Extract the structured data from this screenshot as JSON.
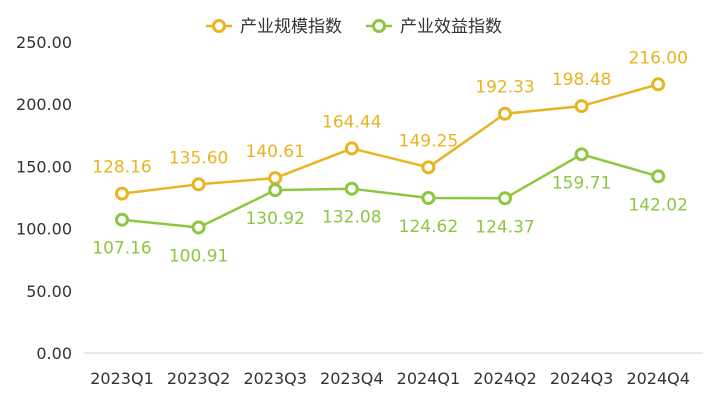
{
  "chart_data": {
    "type": "line",
    "categories": [
      "2023Q1",
      "2023Q2",
      "2023Q3",
      "2023Q4",
      "2024Q1",
      "2024Q2",
      "2024Q3",
      "2024Q4"
    ],
    "ylim": [
      0,
      250
    ],
    "yticks": [
      "0.00",
      "50.00",
      "100.00",
      "150.00",
      "200.00",
      "250.00"
    ],
    "grid": false,
    "legend_position": "top",
    "series": [
      {
        "name": "产业规模指数",
        "color": "#E8B420",
        "values": [
          128.16,
          135.6,
          140.61,
          164.44,
          149.25,
          192.33,
          198.48,
          216.0
        ],
        "labels": [
          "128.16",
          "135.60",
          "140.61",
          "164.44",
          "149.25",
          "192.33",
          "198.48",
          "216.00"
        ],
        "label_position": "above"
      },
      {
        "name": "产业效益指数",
        "color": "#8DC63F",
        "values": [
          107.16,
          100.91,
          130.92,
          132.08,
          124.62,
          124.37,
          159.71,
          142.02
        ],
        "labels": [
          "107.16",
          "100.91",
          "130.92",
          "132.08",
          "124.62",
          "124.37",
          "159.71",
          "142.02"
        ],
        "label_position": "below"
      }
    ]
  }
}
